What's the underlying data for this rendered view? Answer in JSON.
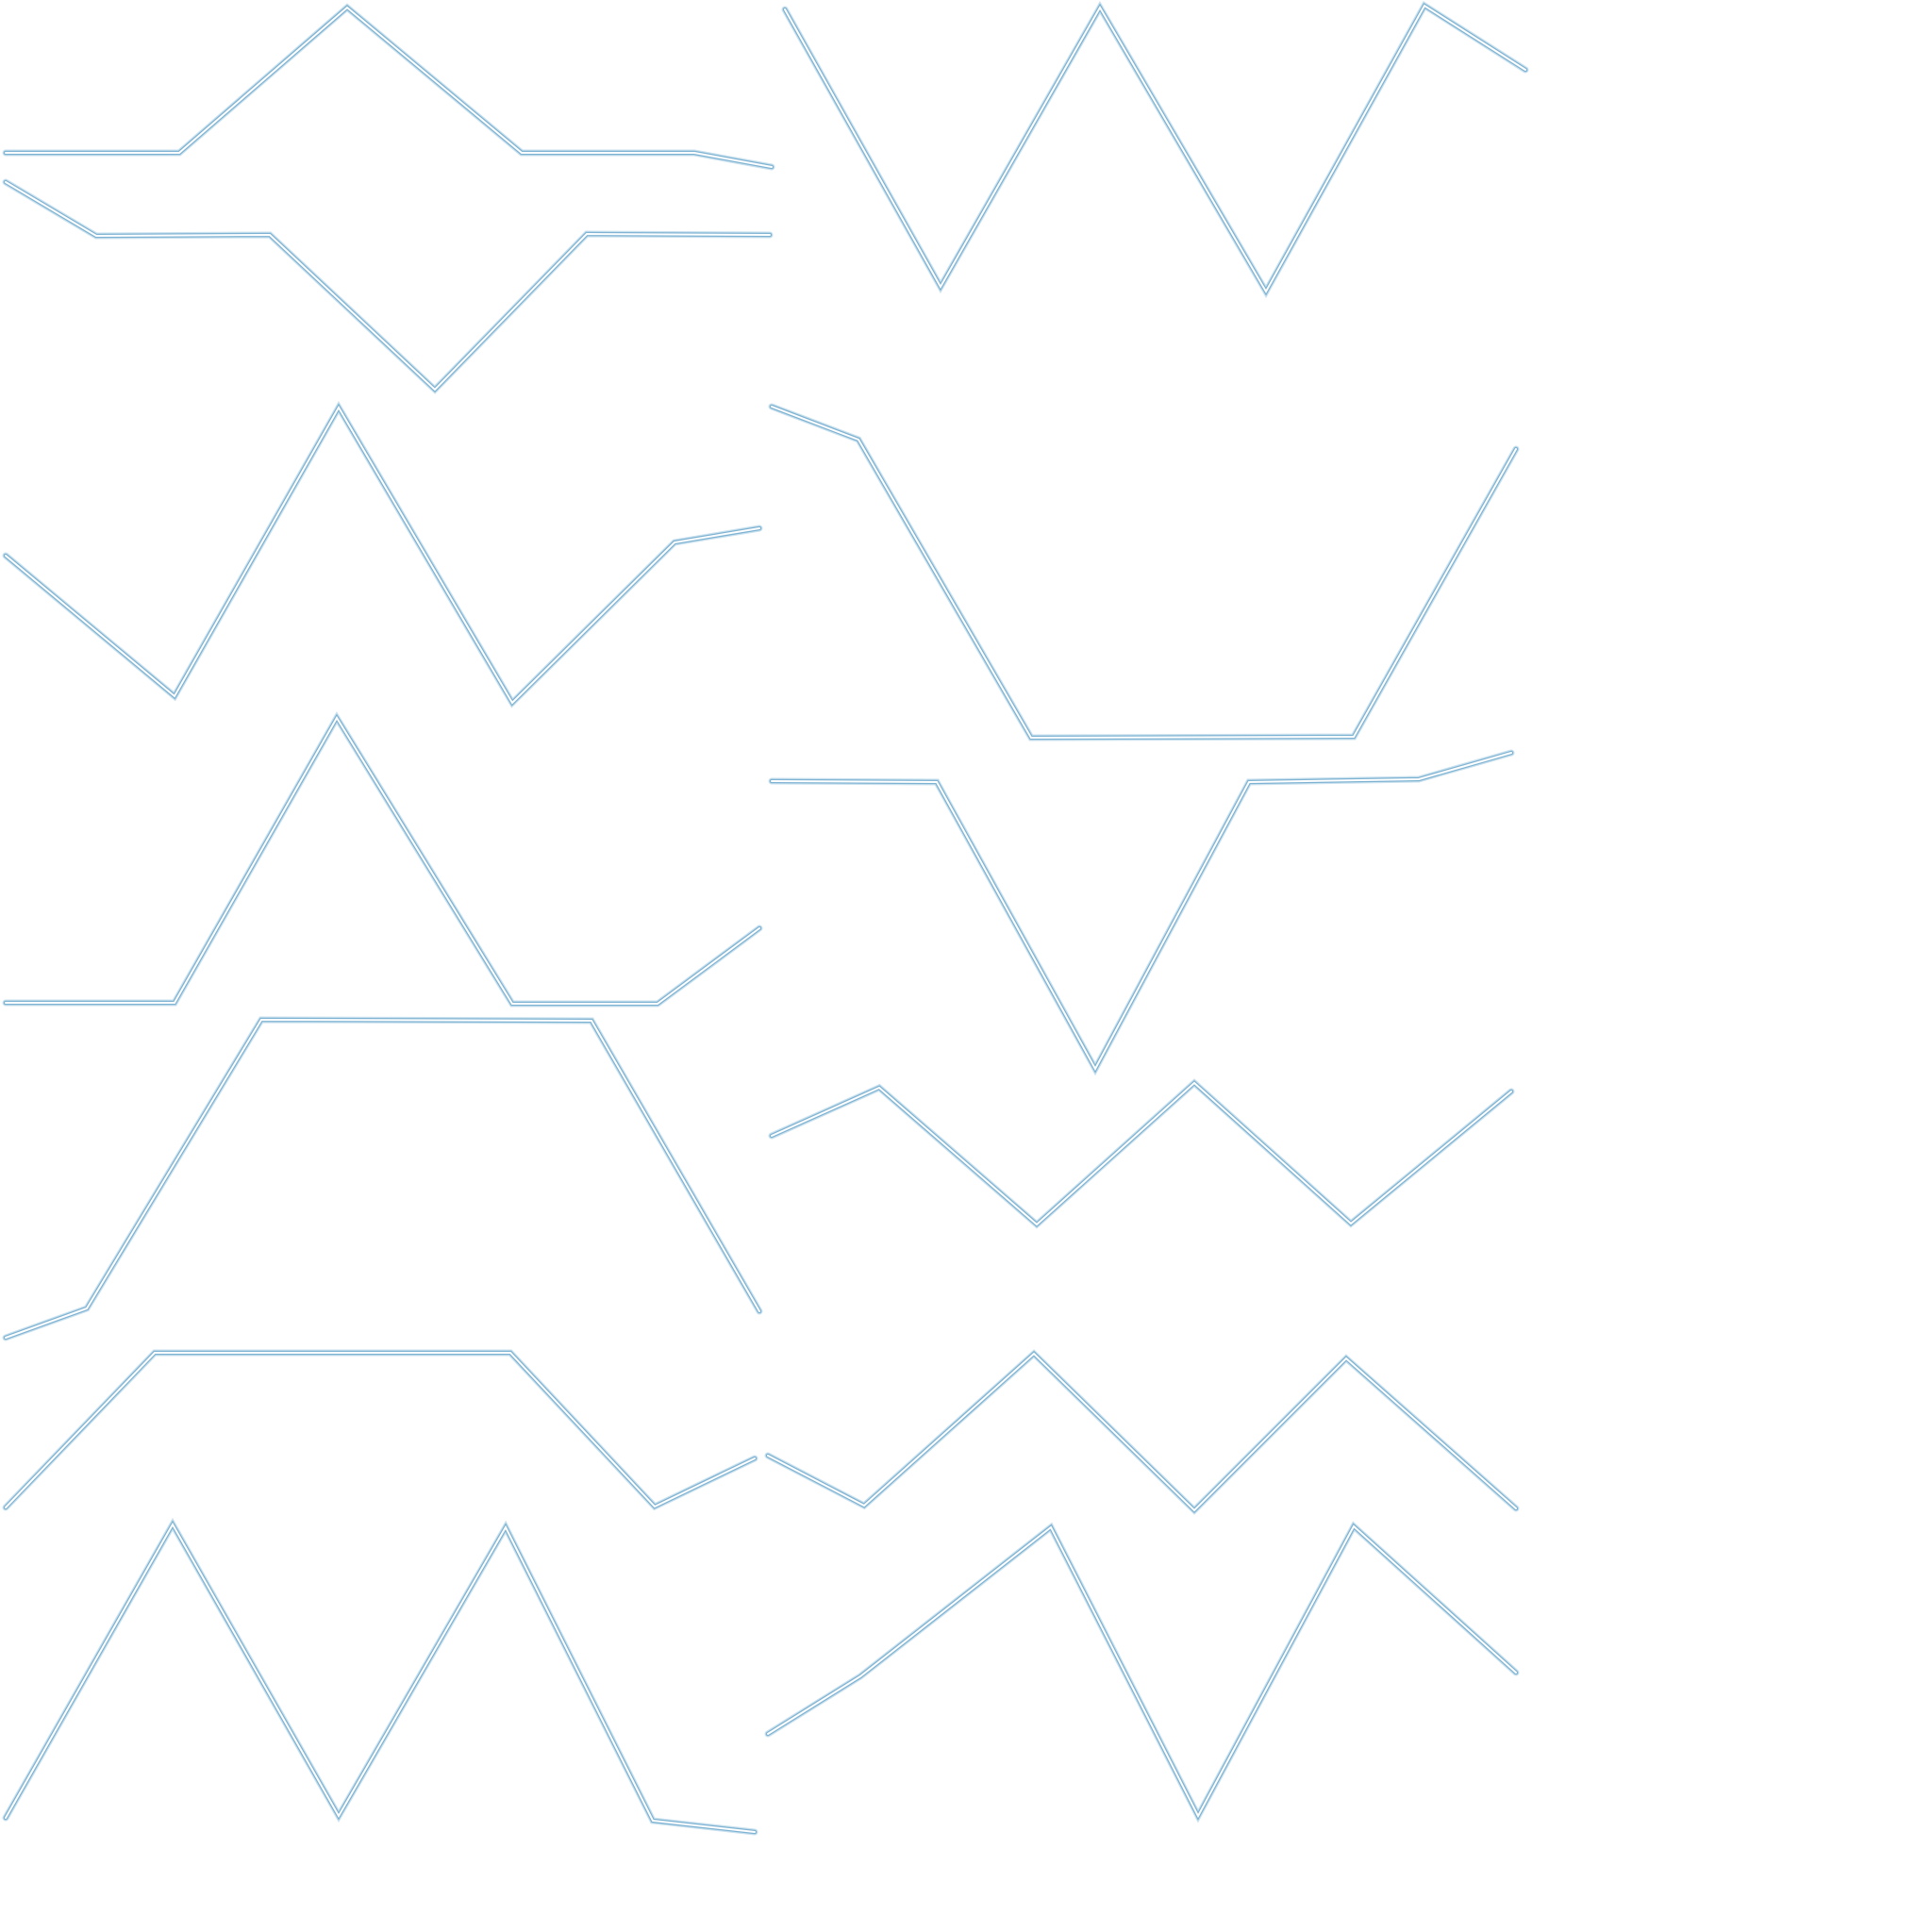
{
  "colors": {
    "background": "#ffffff",
    "line_outer": "#7fb3d3",
    "line_glow": "#9cc8e0",
    "line_inner": "#ffffff"
  },
  "polylines": [
    {
      "name": "line-1"
    },
    {
      "name": "line-2"
    },
    {
      "name": "line-3"
    },
    {
      "name": "line-4"
    },
    {
      "name": "line-5"
    },
    {
      "name": "line-6"
    },
    {
      "name": "line-7"
    },
    {
      "name": "line-8"
    },
    {
      "name": "line-9"
    },
    {
      "name": "line-10"
    },
    {
      "name": "line-11"
    },
    {
      "name": "line-12"
    },
    {
      "name": "line-13"
    },
    {
      "name": "line-14"
    }
  ]
}
